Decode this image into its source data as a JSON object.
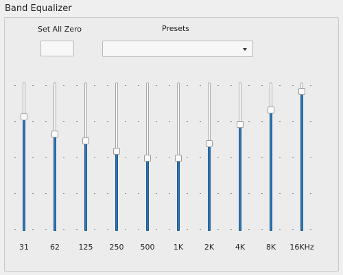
{
  "group": {
    "title": "Band Equalizer"
  },
  "controls": {
    "set_all_zero_label": "Set All Zero",
    "presets_label": "Presets",
    "presets_value": ""
  },
  "bands": [
    {
      "label": "31",
      "level_pct": 78
    },
    {
      "label": "62",
      "level_pct": 66
    },
    {
      "label": "125",
      "level_pct": 61
    },
    {
      "label": "250",
      "level_pct": 54
    },
    {
      "label": "500",
      "level_pct": 49
    },
    {
      "label": "1K",
      "level_pct": 49
    },
    {
      "label": "2K",
      "level_pct": 59
    },
    {
      "label": "4K",
      "level_pct": 73
    },
    {
      "label": "8K",
      "level_pct": 83
    },
    {
      "label": "16KHz",
      "level_pct": 96
    }
  ],
  "colors": {
    "fill": "#2f74b2",
    "background": "#efefef"
  }
}
